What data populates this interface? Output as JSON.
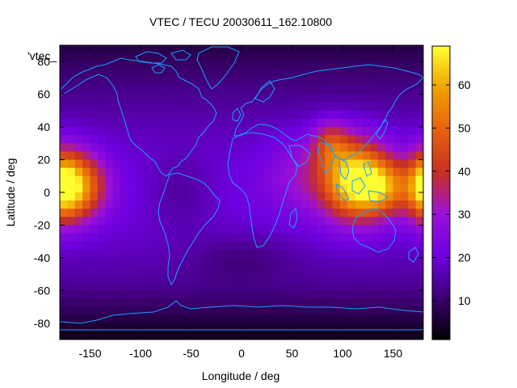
{
  "chart_data": {
    "type": "heatmap",
    "title": "VTEC / TECU 20030611_162.10800",
    "xlabel": "Longitude / deg",
    "ylabel": "Latitude / deg",
    "key_label": "'vtec_",
    "xlim": [
      -180,
      180
    ],
    "ylim": [
      -90,
      90
    ],
    "x_ticks": [
      -150,
      -100,
      -50,
      0,
      50,
      100,
      150
    ],
    "y_ticks": [
      -80,
      -60,
      -40,
      -20,
      0,
      20,
      40,
      60,
      80
    ],
    "colorbar": {
      "min": 1,
      "max": 69,
      "ticks": [
        10,
        20,
        30,
        40,
        50,
        60
      ]
    },
    "grid": false,
    "colormap": [
      "#000000",
      "#3c0070",
      "#6e00e0",
      "#9a10d8",
      "#c83020",
      "#e86010",
      "#f0a000",
      "#ffff30"
    ],
    "enhancements": [
      {
        "lon": 112,
        "lat": 8,
        "peak": 46,
        "rlon": 34,
        "rlat": 24
      },
      {
        "lon": 140,
        "lat": 3,
        "peak": 24,
        "rlon": 30,
        "rlat": 16
      },
      {
        "lon": 88,
        "lat": 30,
        "peak": 18,
        "rlon": 18,
        "rlat": 14
      },
      {
        "lon": -165,
        "lat": 4,
        "peak": 42,
        "rlon": 28,
        "rlat": 20
      },
      {
        "lon": -178,
        "lat": 4,
        "peak": 20,
        "rlon": 15,
        "rlat": 22
      },
      {
        "lon": 55,
        "lat": 12,
        "peak": 8,
        "rlon": 32,
        "rlat": 24
      },
      {
        "lon": -60,
        "lat": 0,
        "peak": -6,
        "rlon": 35,
        "rlat": 22
      },
      {
        "lon": 0,
        "lat": -40,
        "peak": -5,
        "rlon": 50,
        "rlat": 15
      }
    ]
  }
}
